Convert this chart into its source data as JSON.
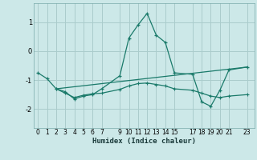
{
  "xlabel": "Humidex (Indice chaleur)",
  "bg_color": "#cce8e8",
  "grid_color": "#aacccc",
  "line_color": "#1a7a6a",
  "xlim": [
    -0.5,
    23.8
  ],
  "ylim": [
    -2.65,
    1.65
  ],
  "yticks": [
    -2,
    -1,
    0,
    1
  ],
  "xticks": [
    0,
    1,
    2,
    3,
    4,
    5,
    6,
    7,
    9,
    10,
    11,
    12,
    13,
    14,
    15,
    17,
    18,
    19,
    20,
    21,
    23
  ],
  "series1": [
    [
      0,
      -0.75
    ],
    [
      1,
      -0.95
    ],
    [
      2,
      -1.3
    ],
    [
      3,
      -1.4
    ],
    [
      4,
      -1.65
    ],
    [
      5,
      -1.55
    ],
    [
      6,
      -1.5
    ],
    [
      7,
      -1.3
    ],
    [
      9,
      -0.85
    ],
    [
      10,
      0.45
    ],
    [
      11,
      0.9
    ],
    [
      12,
      1.3
    ],
    [
      13,
      0.55
    ],
    [
      14,
      0.3
    ],
    [
      15,
      -0.75
    ],
    [
      17,
      -0.8
    ],
    [
      18,
      -1.75
    ],
    [
      19,
      -1.9
    ],
    [
      20,
      -1.35
    ],
    [
      21,
      -0.65
    ],
    [
      23,
      -0.55
    ]
  ],
  "series2": [
    [
      2,
      -1.3
    ],
    [
      3,
      -1.45
    ],
    [
      4,
      -1.6
    ],
    [
      5,
      -1.52
    ],
    [
      6,
      -1.47
    ],
    [
      7,
      -1.45
    ],
    [
      9,
      -1.32
    ],
    [
      10,
      -1.2
    ],
    [
      11,
      -1.12
    ],
    [
      12,
      -1.1
    ],
    [
      13,
      -1.15
    ],
    [
      14,
      -1.2
    ],
    [
      15,
      -1.3
    ],
    [
      17,
      -1.35
    ],
    [
      18,
      -1.45
    ],
    [
      19,
      -1.55
    ],
    [
      20,
      -1.6
    ],
    [
      21,
      -1.55
    ],
    [
      23,
      -1.5
    ]
  ],
  "series3": [
    [
      2,
      -1.3
    ],
    [
      23,
      -0.55
    ]
  ]
}
